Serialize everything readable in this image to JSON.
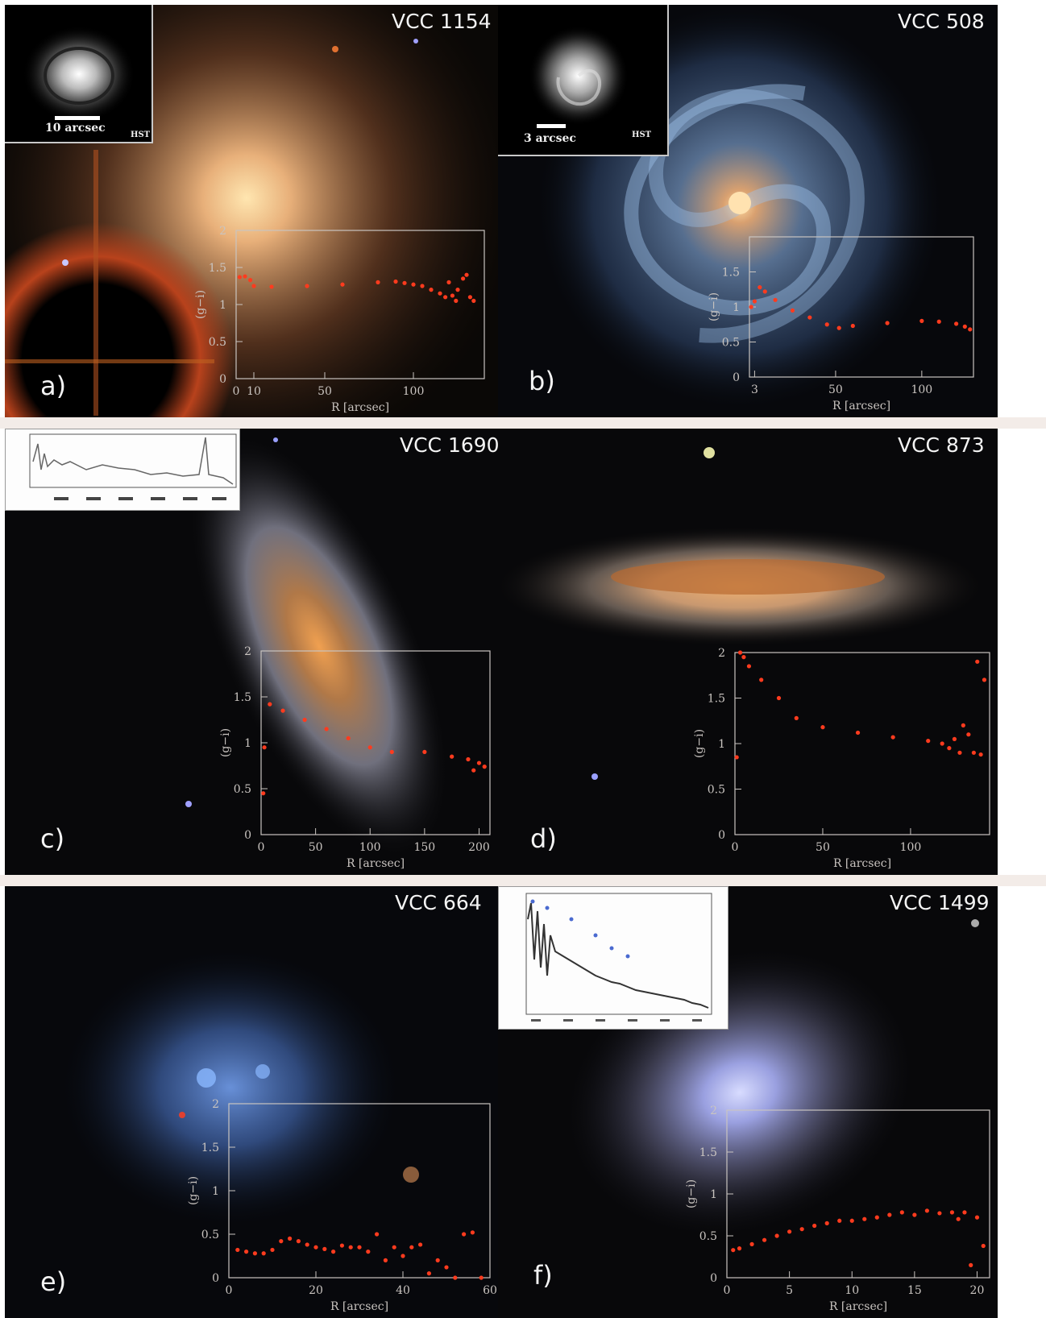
{
  "panels": [
    {
      "id": "a",
      "label": "a)",
      "galaxy": "VCC 1154",
      "inset_scale": "10 arcsec",
      "inset_tag": "HST"
    },
    {
      "id": "b",
      "label": "b)",
      "galaxy": "VCC 508",
      "inset_scale": "3 arcsec",
      "inset_tag": "HST"
    },
    {
      "id": "c",
      "label": "c)",
      "galaxy": "VCC 1690"
    },
    {
      "id": "d",
      "label": "d)",
      "galaxy": "VCC 873"
    },
    {
      "id": "e",
      "label": "e)",
      "galaxy": "VCC 664"
    },
    {
      "id": "f",
      "label": "f)",
      "galaxy": "VCC 1499"
    }
  ],
  "chart_data": [
    {
      "panel": "a",
      "type": "scatter",
      "xlabel": "R [arcsec]",
      "ylabel": "(g−i)",
      "xticks": [
        "0",
        "10",
        "50",
        "100"
      ],
      "yticks": [
        "0",
        "0.5",
        "1",
        "1.5",
        "2"
      ],
      "xlim": [
        0,
        140
      ],
      "ylim": [
        0,
        2
      ],
      "series": [
        {
          "values": [
            [
              2,
              1.37
            ],
            [
              5,
              1.38
            ],
            [
              8,
              1.33
            ],
            [
              10,
              1.25
            ],
            [
              20,
              1.24
            ],
            [
              40,
              1.25
            ],
            [
              60,
              1.27
            ],
            [
              80,
              1.3
            ],
            [
              90,
              1.31
            ],
            [
              95,
              1.29
            ],
            [
              100,
              1.27
            ],
            [
              105,
              1.25
            ],
            [
              110,
              1.2
            ],
            [
              115,
              1.15
            ],
            [
              118,
              1.1
            ],
            [
              122,
              1.12
            ],
            [
              125,
              1.2
            ],
            [
              120,
              1.3
            ],
            [
              128,
              1.35
            ],
            [
              130,
              1.4
            ],
            [
              124,
              1.05
            ],
            [
              132,
              1.1
            ],
            [
              134,
              1.05
            ]
          ]
        }
      ]
    },
    {
      "panel": "b",
      "type": "scatter",
      "xlabel": "R [arcsec]",
      "ylabel": "(g−i)",
      "xticks": [
        "3",
        "50",
        "100"
      ],
      "yticks": [
        "0",
        "0.5",
        "1",
        "1.5"
      ],
      "xlim": [
        0,
        130
      ],
      "ylim": [
        0,
        2
      ],
      "series": [
        {
          "values": [
            [
              1,
              1.0
            ],
            [
              3,
              1.08
            ],
            [
              6,
              1.28
            ],
            [
              9,
              1.22
            ],
            [
              15,
              1.1
            ],
            [
              25,
              0.95
            ],
            [
              35,
              0.85
            ],
            [
              45,
              0.75
            ],
            [
              52,
              0.7
            ],
            [
              60,
              0.73
            ],
            [
              80,
              0.77
            ],
            [
              100,
              0.8
            ],
            [
              110,
              0.79
            ],
            [
              120,
              0.76
            ],
            [
              125,
              0.72
            ],
            [
              128,
              0.68
            ]
          ]
        }
      ]
    },
    {
      "panel": "c",
      "type": "scatter",
      "xlabel": "R [arcsec]",
      "ylabel": "(g−i)",
      "xticks": [
        "0",
        "50",
        "100",
        "150",
        "200"
      ],
      "yticks": [
        "0",
        "0.5",
        "1",
        "1.5",
        "2"
      ],
      "xlim": [
        0,
        210
      ],
      "ylim": [
        0,
        2
      ],
      "series": [
        {
          "values": [
            [
              2,
              0.45
            ],
            [
              3,
              0.95
            ],
            [
              8,
              1.42
            ],
            [
              20,
              1.35
            ],
            [
              40,
              1.25
            ],
            [
              60,
              1.15
            ],
            [
              80,
              1.05
            ],
            [
              100,
              0.95
            ],
            [
              120,
              0.9
            ],
            [
              150,
              0.9
            ],
            [
              175,
              0.85
            ],
            [
              190,
              0.82
            ],
            [
              200,
              0.78
            ],
            [
              205,
              0.74
            ],
            [
              195,
              0.7
            ]
          ]
        }
      ]
    },
    {
      "panel": "d",
      "type": "scatter",
      "xlabel": "R [arcsec]",
      "ylabel": "(g−i)",
      "xticks": [
        "0",
        "50",
        "100"
      ],
      "yticks": [
        "0",
        "0.5",
        "1",
        "1.5",
        "2"
      ],
      "xlim": [
        0,
        145
      ],
      "ylim": [
        0,
        2
      ],
      "series": [
        {
          "values": [
            [
              3,
              2.0
            ],
            [
              5,
              1.95
            ],
            [
              8,
              1.85
            ],
            [
              15,
              1.7
            ],
            [
              25,
              1.5
            ],
            [
              35,
              1.28
            ],
            [
              50,
              1.18
            ],
            [
              70,
              1.12
            ],
            [
              90,
              1.07
            ],
            [
              110,
              1.03
            ],
            [
              118,
              1.0
            ],
            [
              122,
              0.95
            ],
            [
              125,
              1.05
            ],
            [
              128,
              0.9
            ],
            [
              130,
              1.2
            ],
            [
              133,
              1.1
            ],
            [
              136,
              0.9
            ],
            [
              140,
              0.88
            ],
            [
              142,
              1.7
            ],
            [
              138,
              1.9
            ],
            [
              1,
              0.85
            ]
          ]
        }
      ]
    },
    {
      "panel": "e",
      "type": "scatter",
      "xlabel": "R [arcsec]",
      "ylabel": "(g−i)",
      "xticks": [
        "0",
        "20",
        "40",
        "60"
      ],
      "yticks": [
        "0",
        "0.5",
        "1",
        "1.5",
        "2"
      ],
      "xlim": [
        0,
        60
      ],
      "ylim": [
        0,
        2
      ],
      "series": [
        {
          "values": [
            [
              2,
              0.32
            ],
            [
              4,
              0.3
            ],
            [
              6,
              0.28
            ],
            [
              8,
              0.28
            ],
            [
              10,
              0.32
            ],
            [
              12,
              0.42
            ],
            [
              14,
              0.45
            ],
            [
              16,
              0.42
            ],
            [
              18,
              0.38
            ],
            [
              20,
              0.35
            ],
            [
              22,
              0.33
            ],
            [
              24,
              0.3
            ],
            [
              26,
              0.37
            ],
            [
              28,
              0.35
            ],
            [
              30,
              0.35
            ],
            [
              32,
              0.3
            ],
            [
              34,
              0.5
            ],
            [
              36,
              0.2
            ],
            [
              38,
              0.35
            ],
            [
              40,
              0.25
            ],
            [
              42,
              0.35
            ],
            [
              44,
              0.38
            ],
            [
              46,
              0.05
            ],
            [
              48,
              0.2
            ],
            [
              50,
              0.12
            ],
            [
              52,
              0.0
            ],
            [
              54,
              0.5
            ],
            [
              56,
              0.52
            ],
            [
              58,
              0.0
            ]
          ]
        }
      ]
    },
    {
      "panel": "f",
      "type": "scatter",
      "xlabel": "R [arcsec]",
      "ylabel": "(g−i)",
      "xticks": [
        "0",
        "5",
        "10",
        "15",
        "20"
      ],
      "yticks": [
        "0",
        "0.5",
        "1",
        "1.5",
        "2"
      ],
      "xlim": [
        0,
        21
      ],
      "ylim": [
        0,
        2
      ],
      "series": [
        {
          "values": [
            [
              0.5,
              0.33
            ],
            [
              1,
              0.35
            ],
            [
              2,
              0.4
            ],
            [
              3,
              0.45
            ],
            [
              4,
              0.5
            ],
            [
              5,
              0.55
            ],
            [
              6,
              0.58
            ],
            [
              7,
              0.62
            ],
            [
              8,
              0.65
            ],
            [
              9,
              0.68
            ],
            [
              10,
              0.68
            ],
            [
              11,
              0.7
            ],
            [
              12,
              0.72
            ],
            [
              13,
              0.75
            ],
            [
              14,
              0.78
            ],
            [
              15,
              0.75
            ],
            [
              16,
              0.8
            ],
            [
              17,
              0.77
            ],
            [
              18,
              0.78
            ],
            [
              18.5,
              0.7
            ],
            [
              19,
              0.78
            ],
            [
              19.5,
              0.15
            ],
            [
              20,
              0.72
            ],
            [
              20.5,
              0.38
            ]
          ]
        }
      ]
    }
  ]
}
